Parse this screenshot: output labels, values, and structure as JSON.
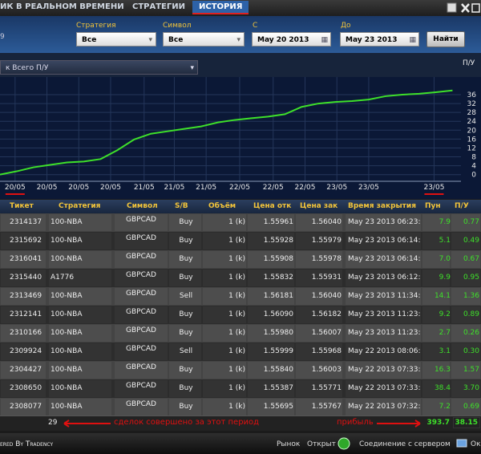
{
  "tabs": [
    "ИК В РЕАЛЬНОМ ВРЕМЕНИ",
    "СТРАТЕГИИ",
    "ИСТОРИЯ"
  ],
  "left_number": "9",
  "filters": {
    "strategy_label": "Стратегия",
    "strategy_value": "Все",
    "symbol_label": "Символ",
    "symbol_value": "Все",
    "from_label": "С",
    "from_value": "May 20 2013",
    "to_label": "До",
    "to_value": "May 23 2013",
    "button": "Найти"
  },
  "chart_data": {
    "type": "line",
    "selector": "к Всего П/У",
    "axis_label": "П/У",
    "color": "#3ee02a",
    "grid": true,
    "x": [
      0,
      1,
      2,
      3,
      4,
      5,
      6,
      7,
      8,
      9,
      10,
      11,
      12,
      13,
      14,
      15,
      16,
      17,
      18,
      19,
      20,
      21,
      22,
      23,
      24,
      25,
      26,
      27
    ],
    "values": [
      0,
      1.5,
      3.3,
      4.4,
      5.5,
      5.9,
      7.0,
      11,
      15.8,
      18.4,
      19.5,
      20.6,
      21.7,
      23.5,
      24.6,
      25.4,
      26.1,
      27.2,
      30.5,
      32,
      32.7,
      33.1,
      33.8,
      35.3,
      36,
      36.4,
      37.1,
      37.9
    ],
    "xlim": [
      0,
      28.7
    ],
    "xticks": [
      {
        "value": 0.9,
        "label": "20/05"
      },
      {
        "value": 2.8,
        "label": "20/05"
      },
      {
        "value": 4.7,
        "label": "20/05"
      },
      {
        "value": 6.6,
        "label": "20/05"
      },
      {
        "value": 8.6,
        "label": "21/05"
      },
      {
        "value": 10.4,
        "label": "21/05"
      },
      {
        "value": 12.3,
        "label": "21/05"
      },
      {
        "value": 14.3,
        "label": "22/05"
      },
      {
        "value": 16.3,
        "label": "22/05"
      },
      {
        "value": 18.2,
        "label": "22/05"
      },
      {
        "value": 20.1,
        "label": "23/05"
      },
      {
        "value": 22,
        "label": "23/05"
      },
      {
        "value": 25.9,
        "label": "23/05"
      }
    ],
    "ylim": [
      -3,
      42.5
    ],
    "yticks": [
      0,
      4,
      8,
      12,
      16,
      20,
      24,
      28,
      32,
      36
    ]
  },
  "table": {
    "columns": [
      "Тикет",
      "Стратегия",
      "Символ",
      "S/B",
      "Объём",
      "Цена отк",
      "Цена зак",
      "Время закрытия",
      "Пун",
      "П/У"
    ],
    "rows": [
      [
        "2314137",
        "100-NBA",
        "GBPCAD",
        "Buy",
        "1 (k)",
        "1.55961",
        "1.56040",
        "May 23 2013 06:23:",
        "7.9",
        "0.77"
      ],
      [
        "2315692",
        "100-NBA",
        "GBPCAD",
        "Buy",
        "1 (k)",
        "1.55928",
        "1.55979",
        "May 23 2013 06:14:",
        "5.1",
        "0.49"
      ],
      [
        "2316041",
        "100-NBA",
        "GBPCAD",
        "Buy",
        "1 (k)",
        "1.55908",
        "1.55978",
        "May 23 2013 06:14:",
        "7.0",
        "0.67"
      ],
      [
        "2315440",
        "A1776",
        "GBPCAD",
        "Buy",
        "1 (k)",
        "1.55832",
        "1.55931",
        "May 23 2013 06:12:",
        "9.9",
        "0.95"
      ],
      [
        "2313469",
        "100-NBA",
        "GBPCAD",
        "Sell",
        "1 (k)",
        "1.56181",
        "1.56040",
        "May 23 2013 11:34:",
        "14.1",
        "1.36"
      ],
      [
        "2312141",
        "100-NBA",
        "GBPCAD",
        "Buy",
        "1 (k)",
        "1.56090",
        "1.56182",
        "May 23 2013 11:23:",
        "9.2",
        "0.89"
      ],
      [
        "2310166",
        "100-NBA",
        "GBPCAD",
        "Buy",
        "1 (k)",
        "1.55980",
        "1.56007",
        "May 23 2013 11:23:",
        "2.7",
        "0.26"
      ],
      [
        "2309924",
        "100-NBA",
        "GBPCAD",
        "Sell",
        "1 (k)",
        "1.55999",
        "1.55968",
        "May 22 2013 08:06:",
        "3.1",
        "0.30"
      ],
      [
        "2304427",
        "100-NBA",
        "GBPCAD",
        "Buy",
        "1 (k)",
        "1.55840",
        "1.56003",
        "May 22 2013 07:33:",
        "16.3",
        "1.57"
      ],
      [
        "2308650",
        "100-NBA",
        "GBPCAD",
        "Buy",
        "1 (k)",
        "1.55387",
        "1.55771",
        "May 22 2013 07:33:",
        "38.4",
        "3.70"
      ],
      [
        "2308077",
        "100-NBA",
        "GBPCAD",
        "Buy",
        "1 (k)",
        "1.55695",
        "1.55767",
        "May 22 2013 07:32:",
        "7.2",
        "0.69"
      ]
    ]
  },
  "footer": {
    "count": "29",
    "count_note": "сделок совершено за этот период",
    "profit_note": "прибыль",
    "total_pips": "393.7",
    "total_pl": "38.15"
  },
  "status": {
    "powered": "ered By Tradency",
    "market_label": "Рынок",
    "market_value": "Открыт",
    "connection": "Соединение с сервером",
    "connection_value": "Ок"
  }
}
